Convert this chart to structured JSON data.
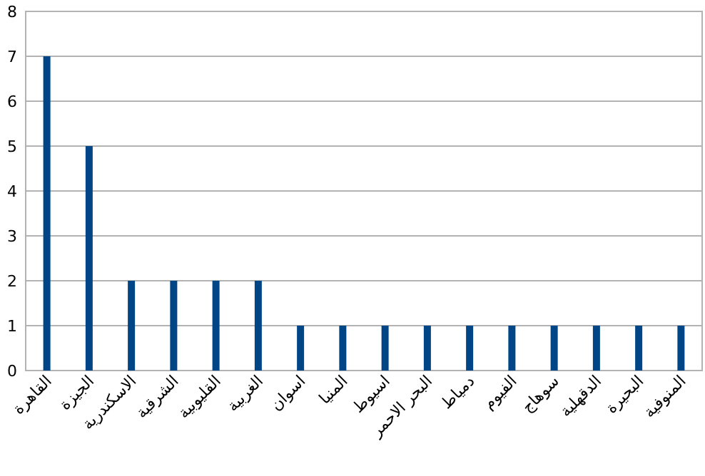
{
  "chart_data": {
    "type": "bar",
    "categories": [
      "القاهرة",
      "الجيزة",
      "الاسكندرية",
      "الشرقية",
      "القليوبية",
      "الغربية",
      "اسوان",
      "المنيا",
      "اسيوط",
      "البحر الاحمر",
      "دمياط",
      "الفيوم",
      "سوهاج",
      "الدقهلية",
      "البحيرة",
      "المنوفية"
    ],
    "values": [
      7,
      5,
      2,
      2,
      2,
      2,
      1,
      1,
      1,
      1,
      1,
      1,
      1,
      1,
      1,
      1
    ],
    "color": "#004586",
    "ylim": [
      0,
      8
    ],
    "yticks": [
      0,
      1,
      2,
      3,
      4,
      5,
      6,
      7,
      8
    ],
    "grid": "y"
  }
}
